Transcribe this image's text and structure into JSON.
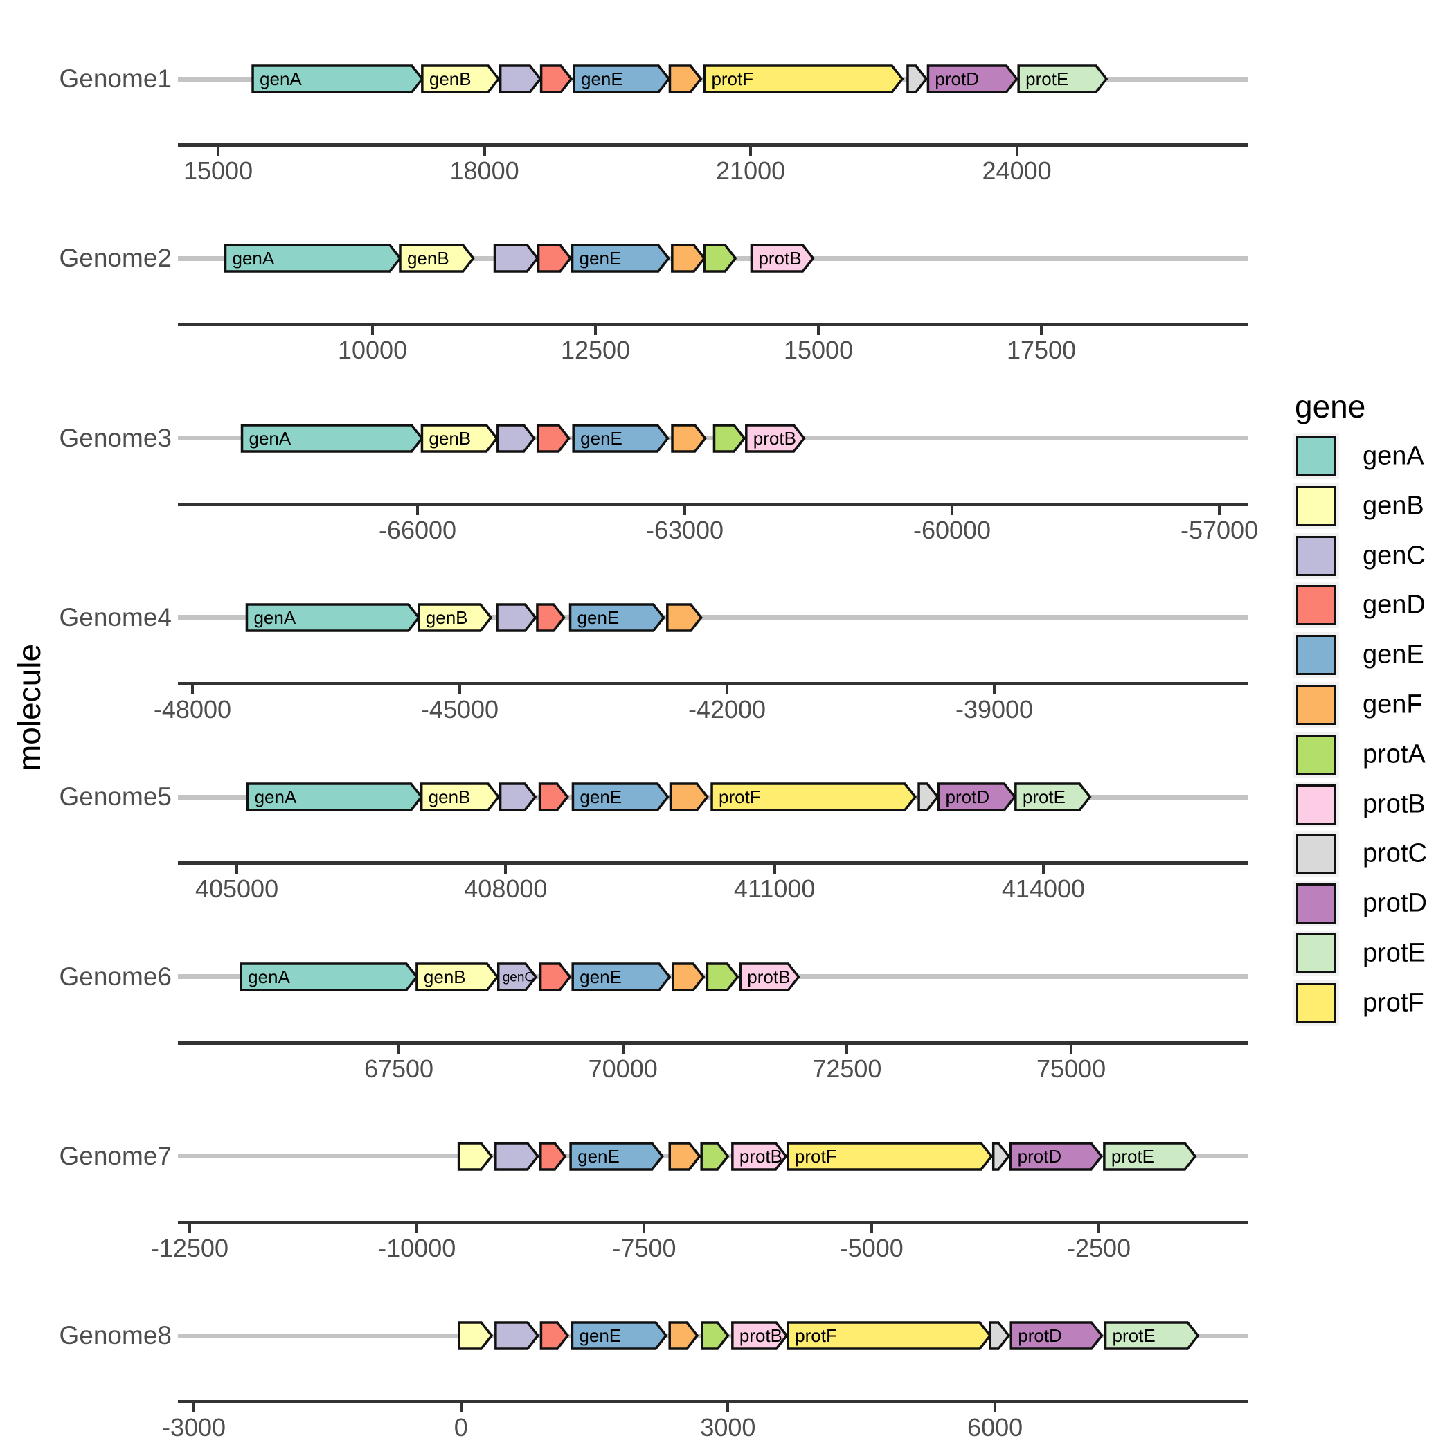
{
  "y_axis_title": "molecule",
  "legend": {
    "title": "gene",
    "items": [
      {
        "label": "genA",
        "color": "#8DD3C7"
      },
      {
        "label": "genB",
        "color": "#FFFFB3"
      },
      {
        "label": "genC",
        "color": "#BEBADA"
      },
      {
        "label": "genD",
        "color": "#FB8072"
      },
      {
        "label": "genE",
        "color": "#80B1D3"
      },
      {
        "label": "genF",
        "color": "#FDB462"
      },
      {
        "label": "protA",
        "color": "#B3DE69"
      },
      {
        "label": "protB",
        "color": "#FCCDE5"
      },
      {
        "label": "protC",
        "color": "#D9D9D9"
      },
      {
        "label": "protD",
        "color": "#BC80BD"
      },
      {
        "label": "protE",
        "color": "#CCEBC5"
      },
      {
        "label": "protF",
        "color": "#FFED6F"
      }
    ]
  },
  "chart_data": {
    "type": "gene_arrow_map",
    "title": "",
    "xlabel": "",
    "ylabel": "molecule",
    "legend_position": "right",
    "grid": false,
    "rows": [
      {
        "molecule": "Genome1",
        "axis": {
          "domain": [
            14547,
            26609
          ],
          "ticks": [
            15000,
            18000,
            21000,
            24000
          ]
        },
        "genes": [
          {
            "gene": "genA",
            "start": 15390,
            "end": 17300,
            "label": "genA"
          },
          {
            "gene": "genB",
            "start": 17300,
            "end": 18160,
            "label": "genB"
          },
          {
            "gene": "genC",
            "start": 18180,
            "end": 18630
          },
          {
            "gene": "genD",
            "start": 18640,
            "end": 18980
          },
          {
            "gene": "genE",
            "start": 19010,
            "end": 20080,
            "label": "genE"
          },
          {
            "gene": "genF",
            "start": 20090,
            "end": 20440
          },
          {
            "gene": "protF",
            "start": 20480,
            "end": 22710,
            "label": "protF"
          },
          {
            "gene": "protC",
            "start": 22770,
            "end": 22980
          },
          {
            "gene": "protD",
            "start": 23000,
            "end": 24000,
            "label": "protD"
          },
          {
            "gene": "protE",
            "start": 24020,
            "end": 25010,
            "label": "protE"
          }
        ]
      },
      {
        "molecule": "Genome2",
        "axis": {
          "domain": [
            7818,
            19821
          ],
          "ticks": [
            10000,
            12500,
            15000,
            17500
          ]
        },
        "genes": [
          {
            "gene": "genA",
            "start": 8350,
            "end": 10310,
            "label": "genA"
          },
          {
            "gene": "genB",
            "start": 10310,
            "end": 11130,
            "label": "genB"
          },
          {
            "gene": "genC",
            "start": 11370,
            "end": 11850
          },
          {
            "gene": "genD",
            "start": 11860,
            "end": 12220
          },
          {
            "gene": "genE",
            "start": 12240,
            "end": 13320,
            "label": "genE"
          },
          {
            "gene": "genF",
            "start": 13360,
            "end": 13720
          },
          {
            "gene": "protA",
            "start": 13720,
            "end": 14070
          },
          {
            "gene": "protB",
            "start": 14250,
            "end": 14940,
            "label": "protB"
          }
        ]
      },
      {
        "molecule": "Genome3",
        "axis": {
          "domain": [
            -68689,
            -56674
          ],
          "ticks": [
            -66000,
            -63000,
            -60000,
            -57000
          ]
        },
        "genes": [
          {
            "gene": "genA",
            "start": -67970,
            "end": -65950,
            "label": "genA"
          },
          {
            "gene": "genB",
            "start": -65950,
            "end": -65110,
            "label": "genB"
          },
          {
            "gene": "genC",
            "start": -65100,
            "end": -64690
          },
          {
            "gene": "genD",
            "start": -64650,
            "end": -64300
          },
          {
            "gene": "genE",
            "start": -64250,
            "end": -63190,
            "label": "genE"
          },
          {
            "gene": "genF",
            "start": -63140,
            "end": -62770
          },
          {
            "gene": "protA",
            "start": -62670,
            "end": -62330
          },
          {
            "gene": "protB",
            "start": -62310,
            "end": -61660,
            "label": "protB"
          }
        ]
      },
      {
        "molecule": "Genome4",
        "axis": {
          "domain": [
            -48163,
            -36148
          ],
          "ticks": [
            -48000,
            -45000,
            -42000,
            -39000
          ]
        },
        "genes": [
          {
            "gene": "genA",
            "start": -47390,
            "end": -45460,
            "label": "genA"
          },
          {
            "gene": "genB",
            "start": -45460,
            "end": -44650,
            "label": "genB"
          },
          {
            "gene": "genC",
            "start": -44580,
            "end": -44150
          },
          {
            "gene": "genD",
            "start": -44130,
            "end": -43830
          },
          {
            "gene": "genE",
            "start": -43760,
            "end": -42710,
            "label": "genE"
          },
          {
            "gene": "genF",
            "start": -42670,
            "end": -42290
          }
        ]
      },
      {
        "molecule": "Genome5",
        "axis": {
          "domain": [
            404343,
            416287
          ],
          "ticks": [
            405000,
            408000,
            411000,
            414000
          ]
        },
        "genes": [
          {
            "gene": "genA",
            "start": 405120,
            "end": 407060,
            "label": "genA"
          },
          {
            "gene": "genB",
            "start": 407060,
            "end": 407920,
            "label": "genB"
          },
          {
            "gene": "genC",
            "start": 407940,
            "end": 408330
          },
          {
            "gene": "genD",
            "start": 408380,
            "end": 408690
          },
          {
            "gene": "genE",
            "start": 408750,
            "end": 409810,
            "label": "genE"
          },
          {
            "gene": "genF",
            "start": 409840,
            "end": 410250
          },
          {
            "gene": "protF",
            "start": 410300,
            "end": 412570,
            "label": "protF"
          },
          {
            "gene": "protC",
            "start": 412610,
            "end": 412820
          },
          {
            "gene": "protD",
            "start": 412830,
            "end": 413680,
            "label": "protD"
          },
          {
            "gene": "protE",
            "start": 413690,
            "end": 414520,
            "label": "protE"
          }
        ]
      },
      {
        "molecule": "Genome6",
        "axis": {
          "domain": [
            65036,
            76977
          ],
          "ticks": [
            67500,
            70000,
            72500,
            75000
          ]
        },
        "genes": [
          {
            "gene": "genA",
            "start": 65740,
            "end": 67700,
            "label": "genA"
          },
          {
            "gene": "genB",
            "start": 67700,
            "end": 68600,
            "label": "genB"
          },
          {
            "gene": "genC",
            "start": 68610,
            "end": 69030,
            "label": "genC",
            "small": true
          },
          {
            "gene": "genD",
            "start": 69080,
            "end": 69410
          },
          {
            "gene": "genE",
            "start": 69440,
            "end": 70520,
            "label": "genE"
          },
          {
            "gene": "genF",
            "start": 70560,
            "end": 70900
          },
          {
            "gene": "protA",
            "start": 70940,
            "end": 71280
          },
          {
            "gene": "protB",
            "start": 71310,
            "end": 71960,
            "label": "protB"
          }
        ]
      },
      {
        "molecule": "Genome7",
        "axis": {
          "domain": [
            -12629,
            -855
          ],
          "ticks": [
            -12500,
            -10000,
            -7500,
            -5000,
            -2500
          ]
        },
        "genes": [
          {
            "gene": "genB",
            "start": -9540,
            "end": -9180
          },
          {
            "gene": "genC",
            "start": -9135,
            "end": -8670
          },
          {
            "gene": "genD",
            "start": -8640,
            "end": -8370
          },
          {
            "gene": "genE",
            "start": -8310,
            "end": -7300,
            "label": "genE"
          },
          {
            "gene": "genF",
            "start": -7220,
            "end": -6890
          },
          {
            "gene": "protA",
            "start": -6870,
            "end": -6580
          },
          {
            "gene": "protB",
            "start": -6530,
            "end": -5940,
            "label": "protB"
          },
          {
            "gene": "protF",
            "start": -5920,
            "end": -3680,
            "label": "protF"
          },
          {
            "gene": "protC",
            "start": -3660,
            "end": -3490
          },
          {
            "gene": "protD",
            "start": -3470,
            "end": -2470,
            "label": "protD"
          },
          {
            "gene": "protE",
            "start": -2440,
            "end": -1440,
            "label": "protE"
          }
        ]
      },
      {
        "molecule": "Genome8",
        "axis": {
          "domain": [
            -3179,
            8846
          ],
          "ticks": [
            -3000,
            0,
            3000,
            6000
          ]
        },
        "genes": [
          {
            "gene": "genB",
            "start": -20,
            "end": 345
          },
          {
            "gene": "genC",
            "start": 390,
            "end": 865
          },
          {
            "gene": "genD",
            "start": 900,
            "end": 1200
          },
          {
            "gene": "genE",
            "start": 1250,
            "end": 2305,
            "label": "genE"
          },
          {
            "gene": "genF",
            "start": 2345,
            "end": 2655
          },
          {
            "gene": "protA",
            "start": 2710,
            "end": 3000
          },
          {
            "gene": "protB",
            "start": 3050,
            "end": 3660,
            "label": "protB"
          },
          {
            "gene": "protF",
            "start": 3675,
            "end": 5945,
            "label": "protF"
          },
          {
            "gene": "protC",
            "start": 5945,
            "end": 6155
          },
          {
            "gene": "protD",
            "start": 6180,
            "end": 7200,
            "label": "protD"
          },
          {
            "gene": "protE",
            "start": 7240,
            "end": 8280,
            "label": "protE"
          }
        ]
      }
    ]
  }
}
